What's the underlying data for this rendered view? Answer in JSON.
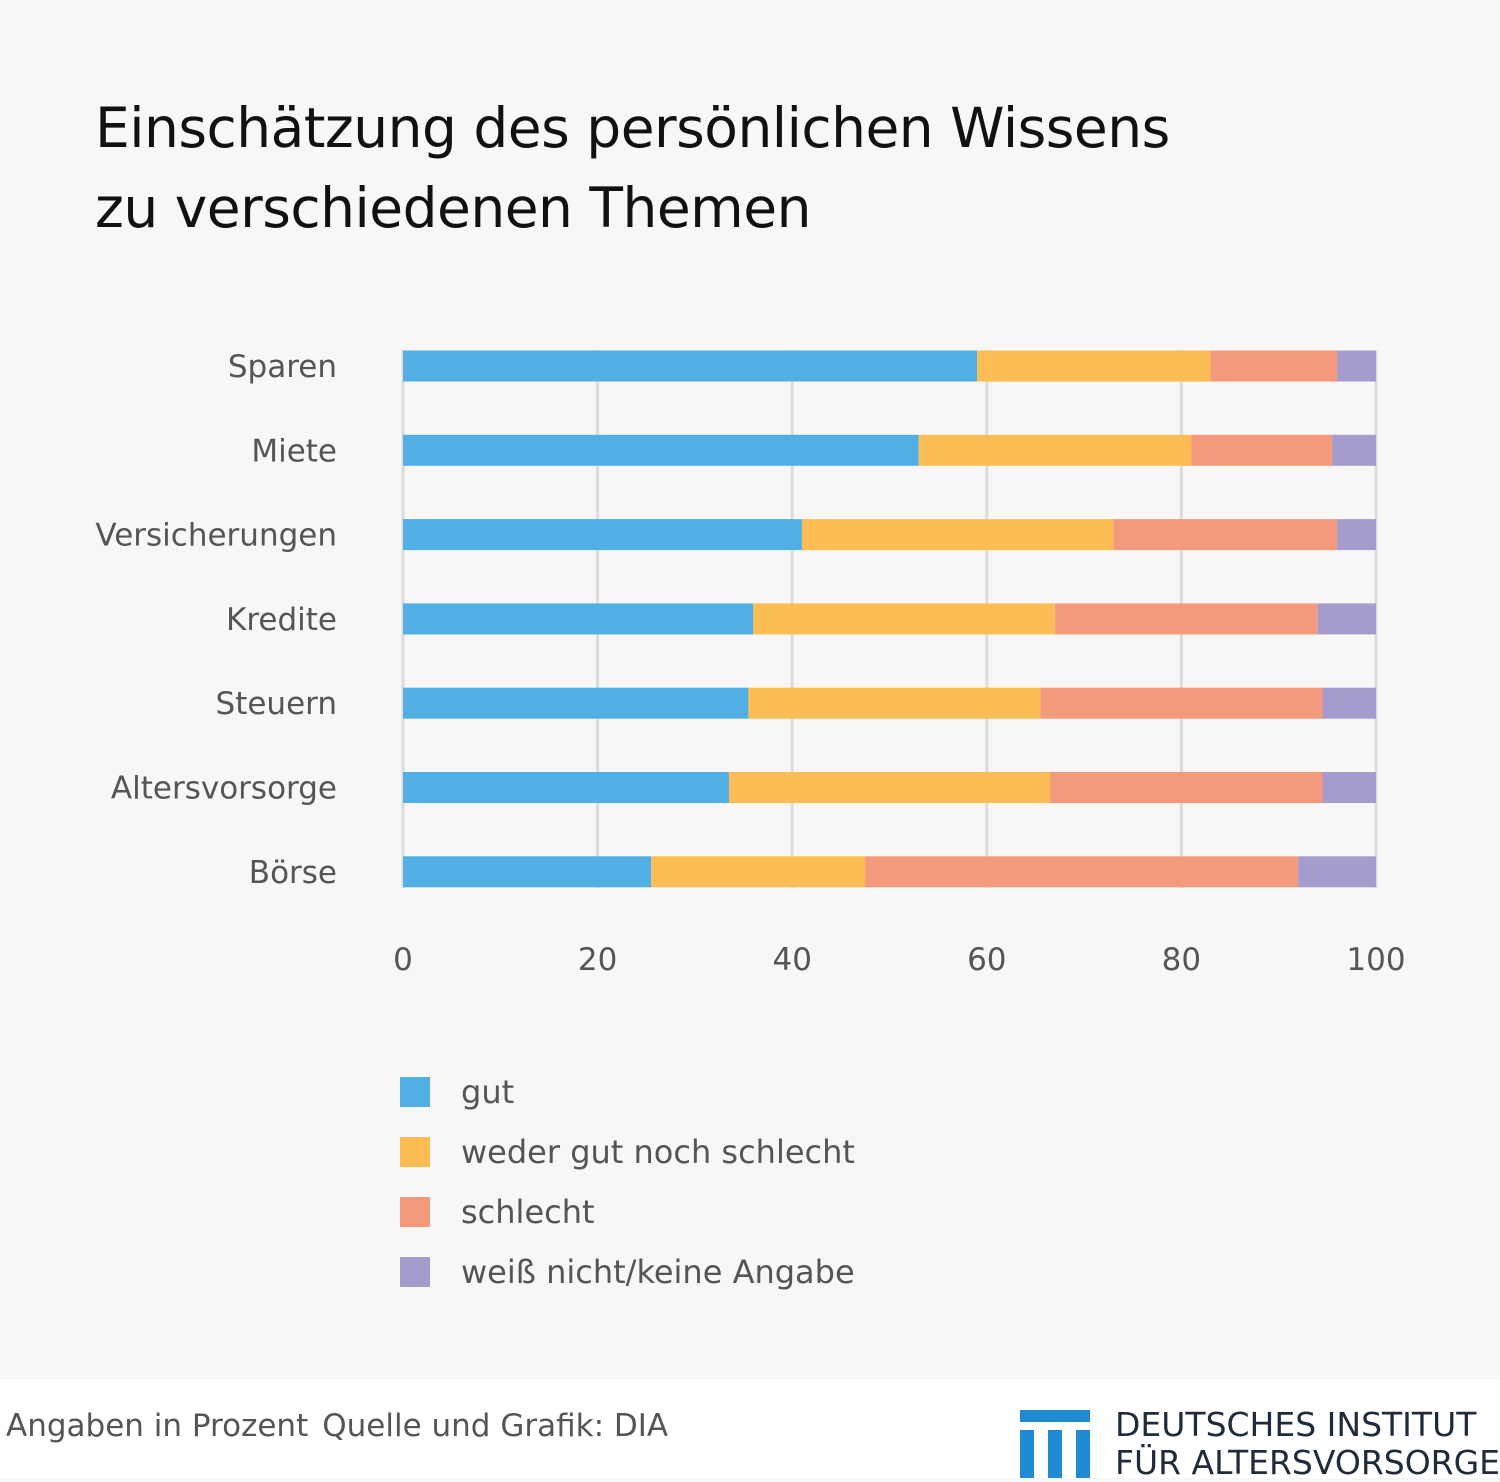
{
  "title_lines": [
    "Einschätzung des persönlichen Wissens",
    "zu verschiedenen Themen"
  ],
  "chart_data": {
    "type": "bar",
    "orientation": "horizontal",
    "stacked": true,
    "categories": [
      "Sparen",
      "Miete",
      "Versicherungen",
      "Kredite",
      "Steuern",
      "Altersvorsorge",
      "Börse"
    ],
    "series": [
      {
        "name": "gut",
        "color": "#52afe3",
        "values": [
          59,
          53,
          41,
          36,
          35.5,
          33.5,
          25.5
        ]
      },
      {
        "name": "weder gut noch schlecht",
        "color": "#fbbd54",
        "values": [
          24,
          28,
          32,
          31,
          30,
          33,
          22
        ]
      },
      {
        "name": "schlecht",
        "color": "#f49a7c",
        "values": [
          13,
          14.5,
          23,
          27,
          29,
          28,
          44.5
        ]
      },
      {
        "name": "weiß nicht/keine Angabe",
        "color": "#a59ccd",
        "values": [
          4,
          4.5,
          4,
          6,
          5.5,
          5.5,
          8
        ]
      }
    ],
    "xlim": [
      0,
      100
    ],
    "xticks": [
      0,
      20,
      40,
      60,
      80,
      100
    ],
    "xtick_labels": [
      "0",
      "20",
      "40",
      "60",
      "80",
      "100"
    ],
    "grid": "vertical",
    "legend_position": "bottom",
    "xlabel": "",
    "ylabel": ""
  },
  "footer": {
    "note": "Angaben in Prozent",
    "source": "Quelle und Grafik: DIA",
    "logo_lines": [
      "DEUTSCHES INSTITUT",
      "FÜR ALTERSVORSORGE"
    ]
  },
  "colors": {
    "background": "#f8f7f5",
    "gridline": "#dcdcdc",
    "logo_blue": "#1f8bd2"
  }
}
